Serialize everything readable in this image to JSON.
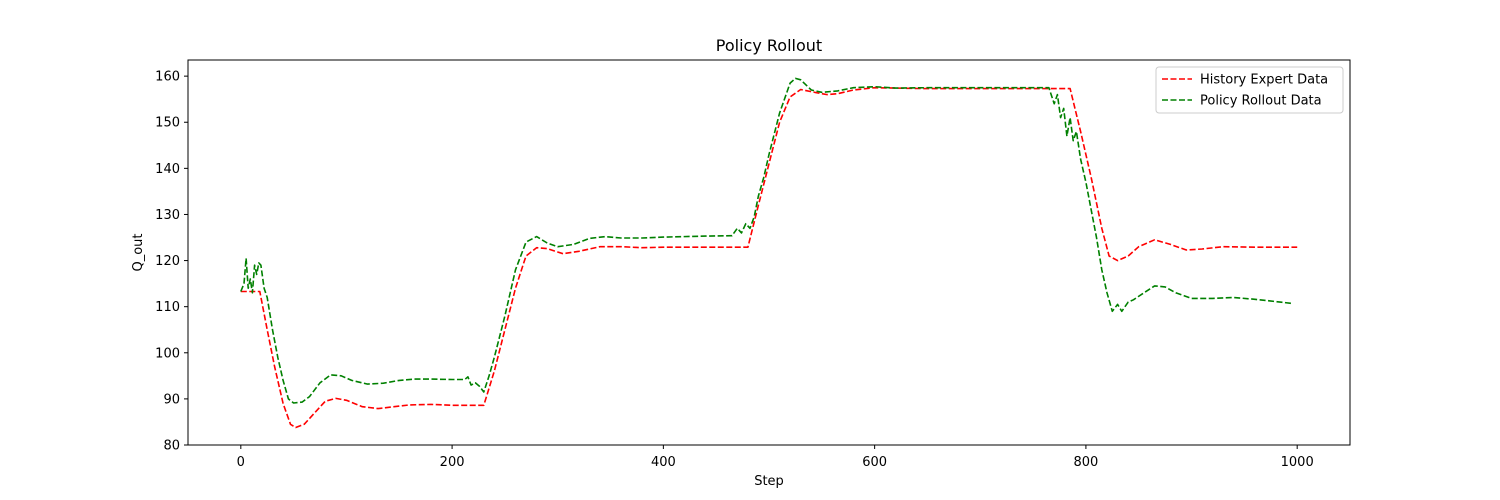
{
  "chart_data": {
    "type": "line",
    "title": "Policy Rollout",
    "xlabel": "Step",
    "ylabel": "Q_out",
    "xlim": [
      -50,
      1050
    ],
    "ylim": [
      80,
      163.5
    ],
    "xticks": [
      0,
      200,
      400,
      600,
      800,
      1000
    ],
    "yticks": [
      80,
      90,
      100,
      110,
      120,
      130,
      140,
      150,
      160
    ],
    "grid": false,
    "legend_position": "top-right",
    "series": [
      {
        "name": "History Expert Data",
        "color": "#ff0000",
        "style": "dashed",
        "points": [
          [
            0,
            113.3
          ],
          [
            18,
            113.3
          ],
          [
            25,
            105
          ],
          [
            32,
            97
          ],
          [
            40,
            89
          ],
          [
            47,
            84.5
          ],
          [
            52,
            83.8
          ],
          [
            60,
            84.5
          ],
          [
            70,
            87
          ],
          [
            80,
            89.5
          ],
          [
            90,
            90.1
          ],
          [
            100,
            89.7
          ],
          [
            115,
            88.3
          ],
          [
            130,
            87.9
          ],
          [
            145,
            88.3
          ],
          [
            160,
            88.7
          ],
          [
            180,
            88.8
          ],
          [
            200,
            88.6
          ],
          [
            215,
            88.6
          ],
          [
            230,
            88.6
          ],
          [
            240,
            96
          ],
          [
            250,
            105
          ],
          [
            260,
            114
          ],
          [
            270,
            121
          ],
          [
            280,
            122.8
          ],
          [
            290,
            122.6
          ],
          [
            305,
            121.5
          ],
          [
            320,
            122
          ],
          [
            340,
            123
          ],
          [
            360,
            123
          ],
          [
            380,
            122.8
          ],
          [
            400,
            122.9
          ],
          [
            450,
            122.9
          ],
          [
            480,
            122.9
          ],
          [
            490,
            132
          ],
          [
            500,
            141
          ],
          [
            510,
            150
          ],
          [
            520,
            155.5
          ],
          [
            530,
            157.1
          ],
          [
            545,
            156.4
          ],
          [
            555,
            156
          ],
          [
            565,
            156.2
          ],
          [
            580,
            157
          ],
          [
            600,
            157.5
          ],
          [
            620,
            157.4
          ],
          [
            650,
            157.3
          ],
          [
            700,
            157.3
          ],
          [
            750,
            157.3
          ],
          [
            785,
            157.3
          ],
          [
            795,
            148
          ],
          [
            805,
            138
          ],
          [
            815,
            127
          ],
          [
            822,
            121
          ],
          [
            830,
            120
          ],
          [
            840,
            121
          ],
          [
            850,
            123
          ],
          [
            865,
            124.5
          ],
          [
            880,
            123.5
          ],
          [
            895,
            122.3
          ],
          [
            910,
            122.5
          ],
          [
            930,
            123
          ],
          [
            960,
            122.9
          ],
          [
            1000,
            122.9
          ]
        ]
      },
      {
        "name": "Policy Rollout Data",
        "color": "#008000",
        "style": "dashed",
        "points": [
          [
            0,
            113.3
          ],
          [
            3,
            115
          ],
          [
            5,
            120.5
          ],
          [
            7,
            114
          ],
          [
            9,
            116
          ],
          [
            11,
            113
          ],
          [
            13,
            119
          ],
          [
            15,
            117
          ],
          [
            17,
            119.5
          ],
          [
            19,
            119
          ],
          [
            22,
            114
          ],
          [
            25,
            112
          ],
          [
            30,
            105
          ],
          [
            35,
            99
          ],
          [
            40,
            94
          ],
          [
            45,
            90
          ],
          [
            50,
            89.1
          ],
          [
            58,
            89.3
          ],
          [
            65,
            90.5
          ],
          [
            75,
            93.5
          ],
          [
            85,
            95.2
          ],
          [
            95,
            95
          ],
          [
            105,
            94
          ],
          [
            120,
            93.2
          ],
          [
            135,
            93.4
          ],
          [
            150,
            94
          ],
          [
            165,
            94.3
          ],
          [
            180,
            94.3
          ],
          [
            200,
            94.2
          ],
          [
            212,
            94.2
          ],
          [
            215,
            94.8
          ],
          [
            218,
            93
          ],
          [
            222,
            93.5
          ],
          [
            226,
            92.7
          ],
          [
            230,
            91.5
          ],
          [
            235,
            95
          ],
          [
            240,
            99
          ],
          [
            250,
            108
          ],
          [
            260,
            118
          ],
          [
            270,
            124
          ],
          [
            280,
            125.2
          ],
          [
            290,
            123.8
          ],
          [
            300,
            123
          ],
          [
            315,
            123.5
          ],
          [
            330,
            124.8
          ],
          [
            345,
            125.2
          ],
          [
            360,
            124.9
          ],
          [
            380,
            124.9
          ],
          [
            400,
            125.1
          ],
          [
            440,
            125.3
          ],
          [
            465,
            125.4
          ],
          [
            470,
            127
          ],
          [
            474,
            126
          ],
          [
            478,
            128
          ],
          [
            482,
            127
          ],
          [
            486,
            129.5
          ],
          [
            490,
            134
          ],
          [
            495,
            138
          ],
          [
            500,
            143
          ],
          [
            510,
            152
          ],
          [
            520,
            158.5
          ],
          [
            525,
            159.5
          ],
          [
            530,
            159.2
          ],
          [
            540,
            157
          ],
          [
            550,
            156.5
          ],
          [
            565,
            156.8
          ],
          [
            580,
            157.5
          ],
          [
            600,
            157.7
          ],
          [
            620,
            157.4
          ],
          [
            650,
            157.5
          ],
          [
            700,
            157.5
          ],
          [
            765,
            157.5
          ],
          [
            770,
            154
          ],
          [
            773,
            156
          ],
          [
            776,
            151
          ],
          [
            779,
            153
          ],
          [
            782,
            147
          ],
          [
            785,
            151
          ],
          [
            788,
            146
          ],
          [
            791,
            148
          ],
          [
            795,
            142
          ],
          [
            800,
            137
          ],
          [
            805,
            131
          ],
          [
            810,
            125
          ],
          [
            815,
            118
          ],
          [
            820,
            113
          ],
          [
            825,
            109
          ],
          [
            830,
            110.5
          ],
          [
            834,
            109
          ],
          [
            840,
            111
          ],
          [
            845,
            111.5
          ],
          [
            855,
            113
          ],
          [
            865,
            114.5
          ],
          [
            875,
            114.3
          ],
          [
            885,
            113
          ],
          [
            900,
            111.8
          ],
          [
            920,
            111.8
          ],
          [
            940,
            112
          ],
          [
            960,
            111.6
          ],
          [
            980,
            111.1
          ],
          [
            995,
            110.7
          ]
        ]
      }
    ]
  }
}
